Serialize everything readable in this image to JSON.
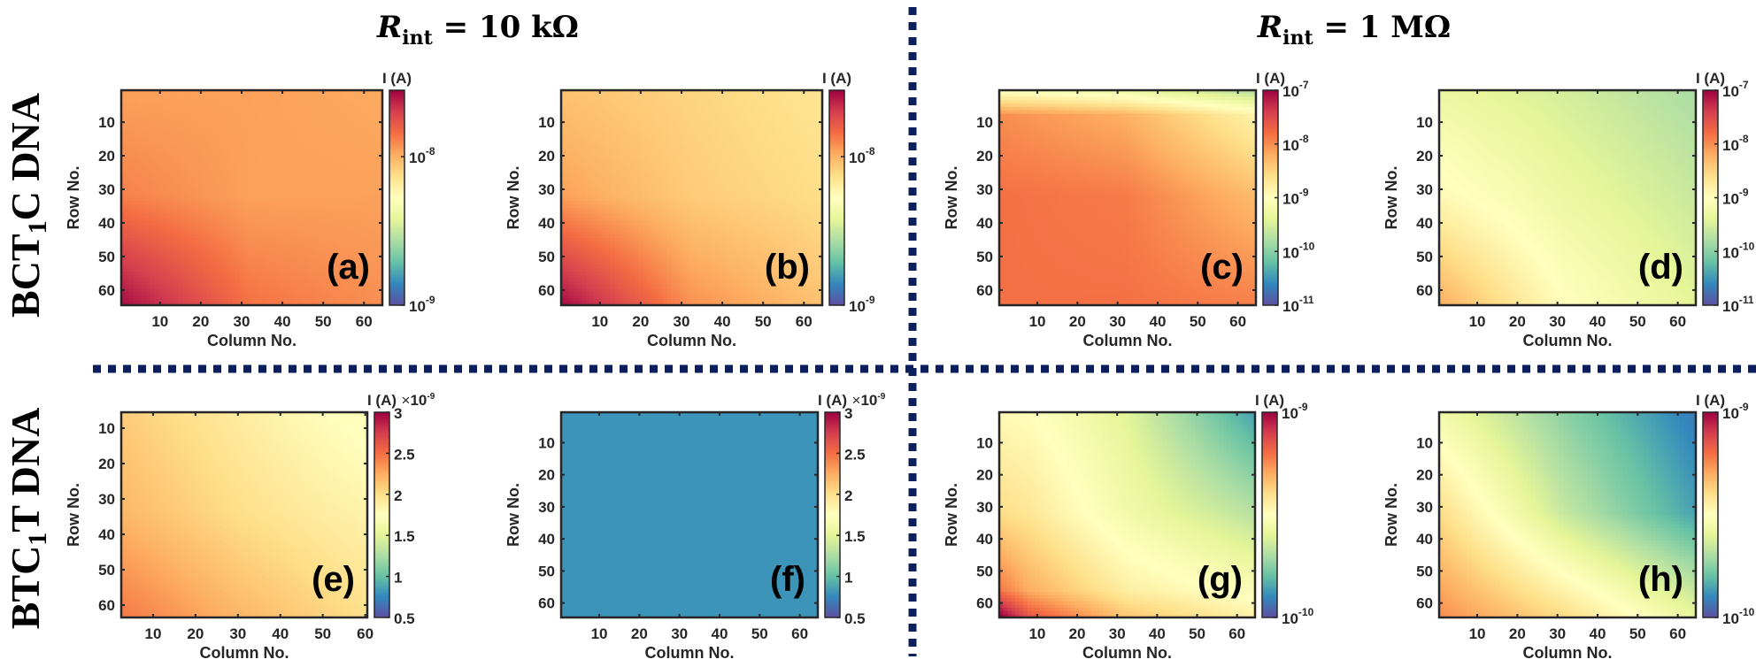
{
  "column_titles": [
    {
      "symbol": "R",
      "subscript": "int",
      "rest": " = 10 kΩ"
    },
    {
      "symbol": "R",
      "subscript": "int",
      "rest": " = 1 MΩ"
    }
  ],
  "row_titles": [
    {
      "prefix": "BCT",
      "subscript": "1",
      "suffix": "C  DNA"
    },
    {
      "prefix": "BTC",
      "subscript": "1",
      "suffix": "T  DNA"
    }
  ],
  "divider_color": "#0a1f5c",
  "colormap": [
    "#5e4fa2",
    "#3288bd",
    "#66c2a5",
    "#abdda4",
    "#e6f598",
    "#ffffbf",
    "#fee08b",
    "#fdae61",
    "#f46d43",
    "#d53e4f",
    "#9e0142"
  ],
  "chart_data": [
    {
      "type": "heatmap",
      "panel_label": "(a)",
      "xlabel": "Column No.",
      "ylabel": "Row No.",
      "colorbar_title": "I (A)",
      "colorbar_multiplier": null,
      "scale": "log",
      "clim": [
        1e-09,
        2.8e-08
      ],
      "xlim": [
        0.5,
        64.5
      ],
      "ylim": [
        0.5,
        64.5
      ],
      "xticks": [
        "10",
        "20",
        "30",
        "40",
        "50",
        "60"
      ],
      "yticks": [
        "10",
        "20",
        "30",
        "40",
        "50",
        "60"
      ],
      "cbar_ticks": [
        {
          "value": 1e-08,
          "base": "10",
          "exp": "-8"
        },
        {
          "value": 1e-09,
          "base": "10",
          "exp": "-9"
        }
      ],
      "sample_rows": [
        1,
        32,
        64
      ],
      "sample_cols": [
        1,
        32,
        64
      ],
      "values": [
        [
          1.1e-08,
          1.1e-08,
          1.05e-08
        ],
        [
          1.3e-08,
          1.1e-08,
          1.1e-08
        ],
        [
          2.6e-08,
          1.4e-08,
          1.2e-08
        ]
      ]
    },
    {
      "type": "heatmap",
      "panel_label": "(b)",
      "xlabel": "Column No.",
      "ylabel": "Row No.",
      "colorbar_title": "I (A)",
      "colorbar_multiplier": null,
      "scale": "log",
      "clim": [
        1e-09,
        2.8e-08
      ],
      "xlim": [
        0.5,
        64.5
      ],
      "ylim": [
        0.5,
        64.5
      ],
      "xticks": [
        "10",
        "20",
        "30",
        "40",
        "50",
        "60"
      ],
      "yticks": [
        "10",
        "20",
        "30",
        "40",
        "50",
        "60"
      ],
      "cbar_ticks": [
        {
          "value": 1e-08,
          "base": "10",
          "exp": "-8"
        },
        {
          "value": 1e-09,
          "base": "10",
          "exp": "-9"
        }
      ],
      "sample_rows": [
        1,
        32,
        64
      ],
      "sample_cols": [
        1,
        32,
        64
      ],
      "values": [
        [
          9e-09,
          8e-09,
          7e-09
        ],
        [
          1.1e-08,
          8.5e-09,
          7.5e-09
        ],
        [
          2.6e-08,
          1.2e-08,
          9e-09
        ]
      ]
    },
    {
      "type": "heatmap",
      "panel_label": "(c)",
      "xlabel": "Column No.",
      "ylabel": "Row No.",
      "colorbar_title": "I (A)",
      "colorbar_multiplier": null,
      "scale": "log",
      "clim": [
        1e-11,
        1e-07
      ],
      "xlim": [
        0.5,
        64.5
      ],
      "ylim": [
        0.5,
        64.5
      ],
      "xticks": [
        "10",
        "20",
        "30",
        "40",
        "50",
        "60"
      ],
      "yticks": [
        "10",
        "20",
        "30",
        "40",
        "50",
        "60"
      ],
      "cbar_ticks": [
        {
          "value": 1e-07,
          "base": "10",
          "exp": "-7"
        },
        {
          "value": 1e-08,
          "base": "10",
          "exp": "-8"
        },
        {
          "value": 1e-09,
          "base": "10",
          "exp": "-9"
        },
        {
          "value": 1e-10,
          "base": "10",
          "exp": "-10"
        },
        {
          "value": 1e-11,
          "base": "10",
          "exp": "-11"
        }
      ],
      "sample_rows": [
        1,
        8,
        32,
        64
      ],
      "sample_cols": [
        1,
        32,
        64
      ],
      "values": [
        [
          1e-09,
          6e-10,
          2e-10
        ],
        [
          1e-08,
          6e-09,
          1.5e-09
        ],
        [
          1.5e-08,
          1.3e-08,
          5e-09
        ],
        [
          1.5e-08,
          1.5e-08,
          1.2e-08
        ]
      ]
    },
    {
      "type": "heatmap",
      "panel_label": "(d)",
      "xlabel": "Column No.",
      "ylabel": "Row No.",
      "colorbar_title": "I (A)",
      "colorbar_multiplier": null,
      "scale": "log",
      "clim": [
        1e-11,
        1e-07
      ],
      "xlim": [
        0.5,
        64.5
      ],
      "ylim": [
        0.5,
        64.5
      ],
      "xticks": [
        "10",
        "20",
        "30",
        "40",
        "50",
        "60"
      ],
      "yticks": [
        "10",
        "20",
        "30",
        "40",
        "50",
        "60"
      ],
      "cbar_ticks": [
        {
          "value": 1e-07,
          "base": "10",
          "exp": "-7"
        },
        {
          "value": 1e-08,
          "base": "10",
          "exp": "-8"
        },
        {
          "value": 1e-09,
          "base": "10",
          "exp": "-9"
        },
        {
          "value": 1e-10,
          "base": "10",
          "exp": "-10"
        },
        {
          "value": 1e-11,
          "base": "10",
          "exp": "-11"
        }
      ],
      "sample_rows": [
        1,
        32,
        64
      ],
      "sample_cols": [
        1,
        32,
        64
      ],
      "values": [
        [
          5e-10,
          3e-10,
          1.6e-10
        ],
        [
          1.2e-09,
          5e-10,
          2.5e-10
        ],
        [
          6e-09,
          1e-09,
          4e-10
        ]
      ]
    },
    {
      "type": "heatmap",
      "panel_label": "(e)",
      "xlabel": "Column No.",
      "ylabel": "Row No.",
      "colorbar_title": "I (A)",
      "colorbar_multiplier": {
        "prefix": "×",
        "base": "10",
        "exp": "-9"
      },
      "scale": "linear",
      "clim": [
        5e-10,
        3e-09
      ],
      "xlim": [
        2.5,
        60.5
      ],
      "ylim": [
        5.5,
        63.5
      ],
      "xticks": [
        "10",
        "20",
        "30",
        "40",
        "50",
        "60"
      ],
      "yticks": [
        "10",
        "20",
        "30",
        "40",
        "50",
        "60"
      ],
      "cbar_ticks": [
        {
          "value": 3e-09,
          "base": "3",
          "exp": ""
        },
        {
          "value": 2.5e-09,
          "base": "2.5",
          "exp": ""
        },
        {
          "value": 2e-09,
          "base": "2",
          "exp": ""
        },
        {
          "value": 1.5e-09,
          "base": "1.5",
          "exp": ""
        },
        {
          "value": 1e-09,
          "base": "1",
          "exp": ""
        },
        {
          "value": 5e-10,
          "base": "0.5",
          "exp": ""
        }
      ],
      "sample_rows": [
        6,
        34,
        63
      ],
      "sample_cols": [
        3,
        31,
        60
      ],
      "values": [
        [
          2.1e-09,
          1.9e-09,
          1.7e-09
        ],
        [
          2.2e-09,
          2e-09,
          1.85e-09
        ],
        [
          2.45e-09,
          2.2e-09,
          2e-09
        ]
      ]
    },
    {
      "type": "heatmap",
      "panel_label": "(f)",
      "xlabel": "Column No.",
      "ylabel": "Row No.",
      "colorbar_title": "I (A)",
      "colorbar_multiplier": {
        "prefix": "×",
        "base": "10",
        "exp": "-9"
      },
      "scale": "linear",
      "clim": [
        5e-10,
        3e-09
      ],
      "xlim": [
        0.5,
        64.5
      ],
      "ylim": [
        0.5,
        64.5
      ],
      "xticks": [
        "10",
        "20",
        "30",
        "40",
        "50",
        "60"
      ],
      "yticks": [
        "10",
        "20",
        "30",
        "40",
        "50",
        "60"
      ],
      "cbar_ticks": [
        {
          "value": 3e-09,
          "base": "3",
          "exp": ""
        },
        {
          "value": 2.5e-09,
          "base": "2.5",
          "exp": ""
        },
        {
          "value": 2e-09,
          "base": "2",
          "exp": ""
        },
        {
          "value": 1.5e-09,
          "base": "1.5",
          "exp": ""
        },
        {
          "value": 1e-09,
          "base": "1",
          "exp": ""
        },
        {
          "value": 5e-10,
          "base": "0.5",
          "exp": ""
        }
      ],
      "sample_rows": [
        1,
        64
      ],
      "sample_cols": [
        1,
        64
      ],
      "values": [
        [
          8e-10,
          8e-10
        ],
        [
          8e-10,
          8e-10
        ]
      ]
    },
    {
      "type": "heatmap",
      "panel_label": "(g)",
      "xlabel": "Column No.",
      "ylabel": "Row No.",
      "colorbar_title": "I (A)",
      "colorbar_multiplier": null,
      "scale": "log",
      "clim": [
        1e-10,
        1e-09
      ],
      "xlim": [
        0.5,
        64.5
      ],
      "ylim": [
        0.5,
        64.5
      ],
      "xticks": [
        "10",
        "20",
        "30",
        "40",
        "50",
        "60"
      ],
      "yticks": [
        "10",
        "20",
        "30",
        "40",
        "50",
        "60"
      ],
      "cbar_ticks": [
        {
          "value": 1e-09,
          "base": "10",
          "exp": "-9"
        },
        {
          "value": 1e-10,
          "base": "10",
          "exp": "-10"
        }
      ],
      "sample_rows": [
        1,
        32,
        56,
        64
      ],
      "sample_cols": [
        1,
        8,
        32,
        64
      ],
      "values": [
        [
          3.3e-10,
          3.2e-10,
          2.5e-10,
          1.4e-10
        ],
        [
          4e-10,
          3.8e-10,
          2.8e-10,
          2.1e-10
        ],
        [
          6e-10,
          5e-10,
          3.6e-10,
          3e-10
        ],
        [
          1e-09,
          7e-10,
          4.5e-10,
          3.5e-10
        ]
      ]
    },
    {
      "type": "heatmap",
      "panel_label": "(h)",
      "xlabel": "Column No.",
      "ylabel": "Row No.",
      "colorbar_title": "I (A)",
      "colorbar_multiplier": null,
      "scale": "log",
      "clim": [
        1e-10,
        1e-09
      ],
      "xlim": [
        0.5,
        64.5
      ],
      "ylim": [
        0.5,
        64.5
      ],
      "xticks": [
        "10",
        "20",
        "30",
        "40",
        "50",
        "60"
      ],
      "yticks": [
        "10",
        "20",
        "30",
        "40",
        "50",
        "60"
      ],
      "cbar_ticks": [
        {
          "value": 1e-09,
          "base": "10",
          "exp": "-9"
        },
        {
          "value": 1e-10,
          "base": "10",
          "exp": "-10"
        }
      ],
      "sample_rows": [
        1,
        32,
        64
      ],
      "sample_cols": [
        1,
        32,
        64
      ],
      "values": [
        [
          2.8e-10,
          1.8e-10,
          1.2e-10
        ],
        [
          4e-10,
          2.2e-10,
          1.4e-10
        ],
        [
          5.6e-10,
          4e-10,
          2.6e-10
        ]
      ]
    }
  ]
}
